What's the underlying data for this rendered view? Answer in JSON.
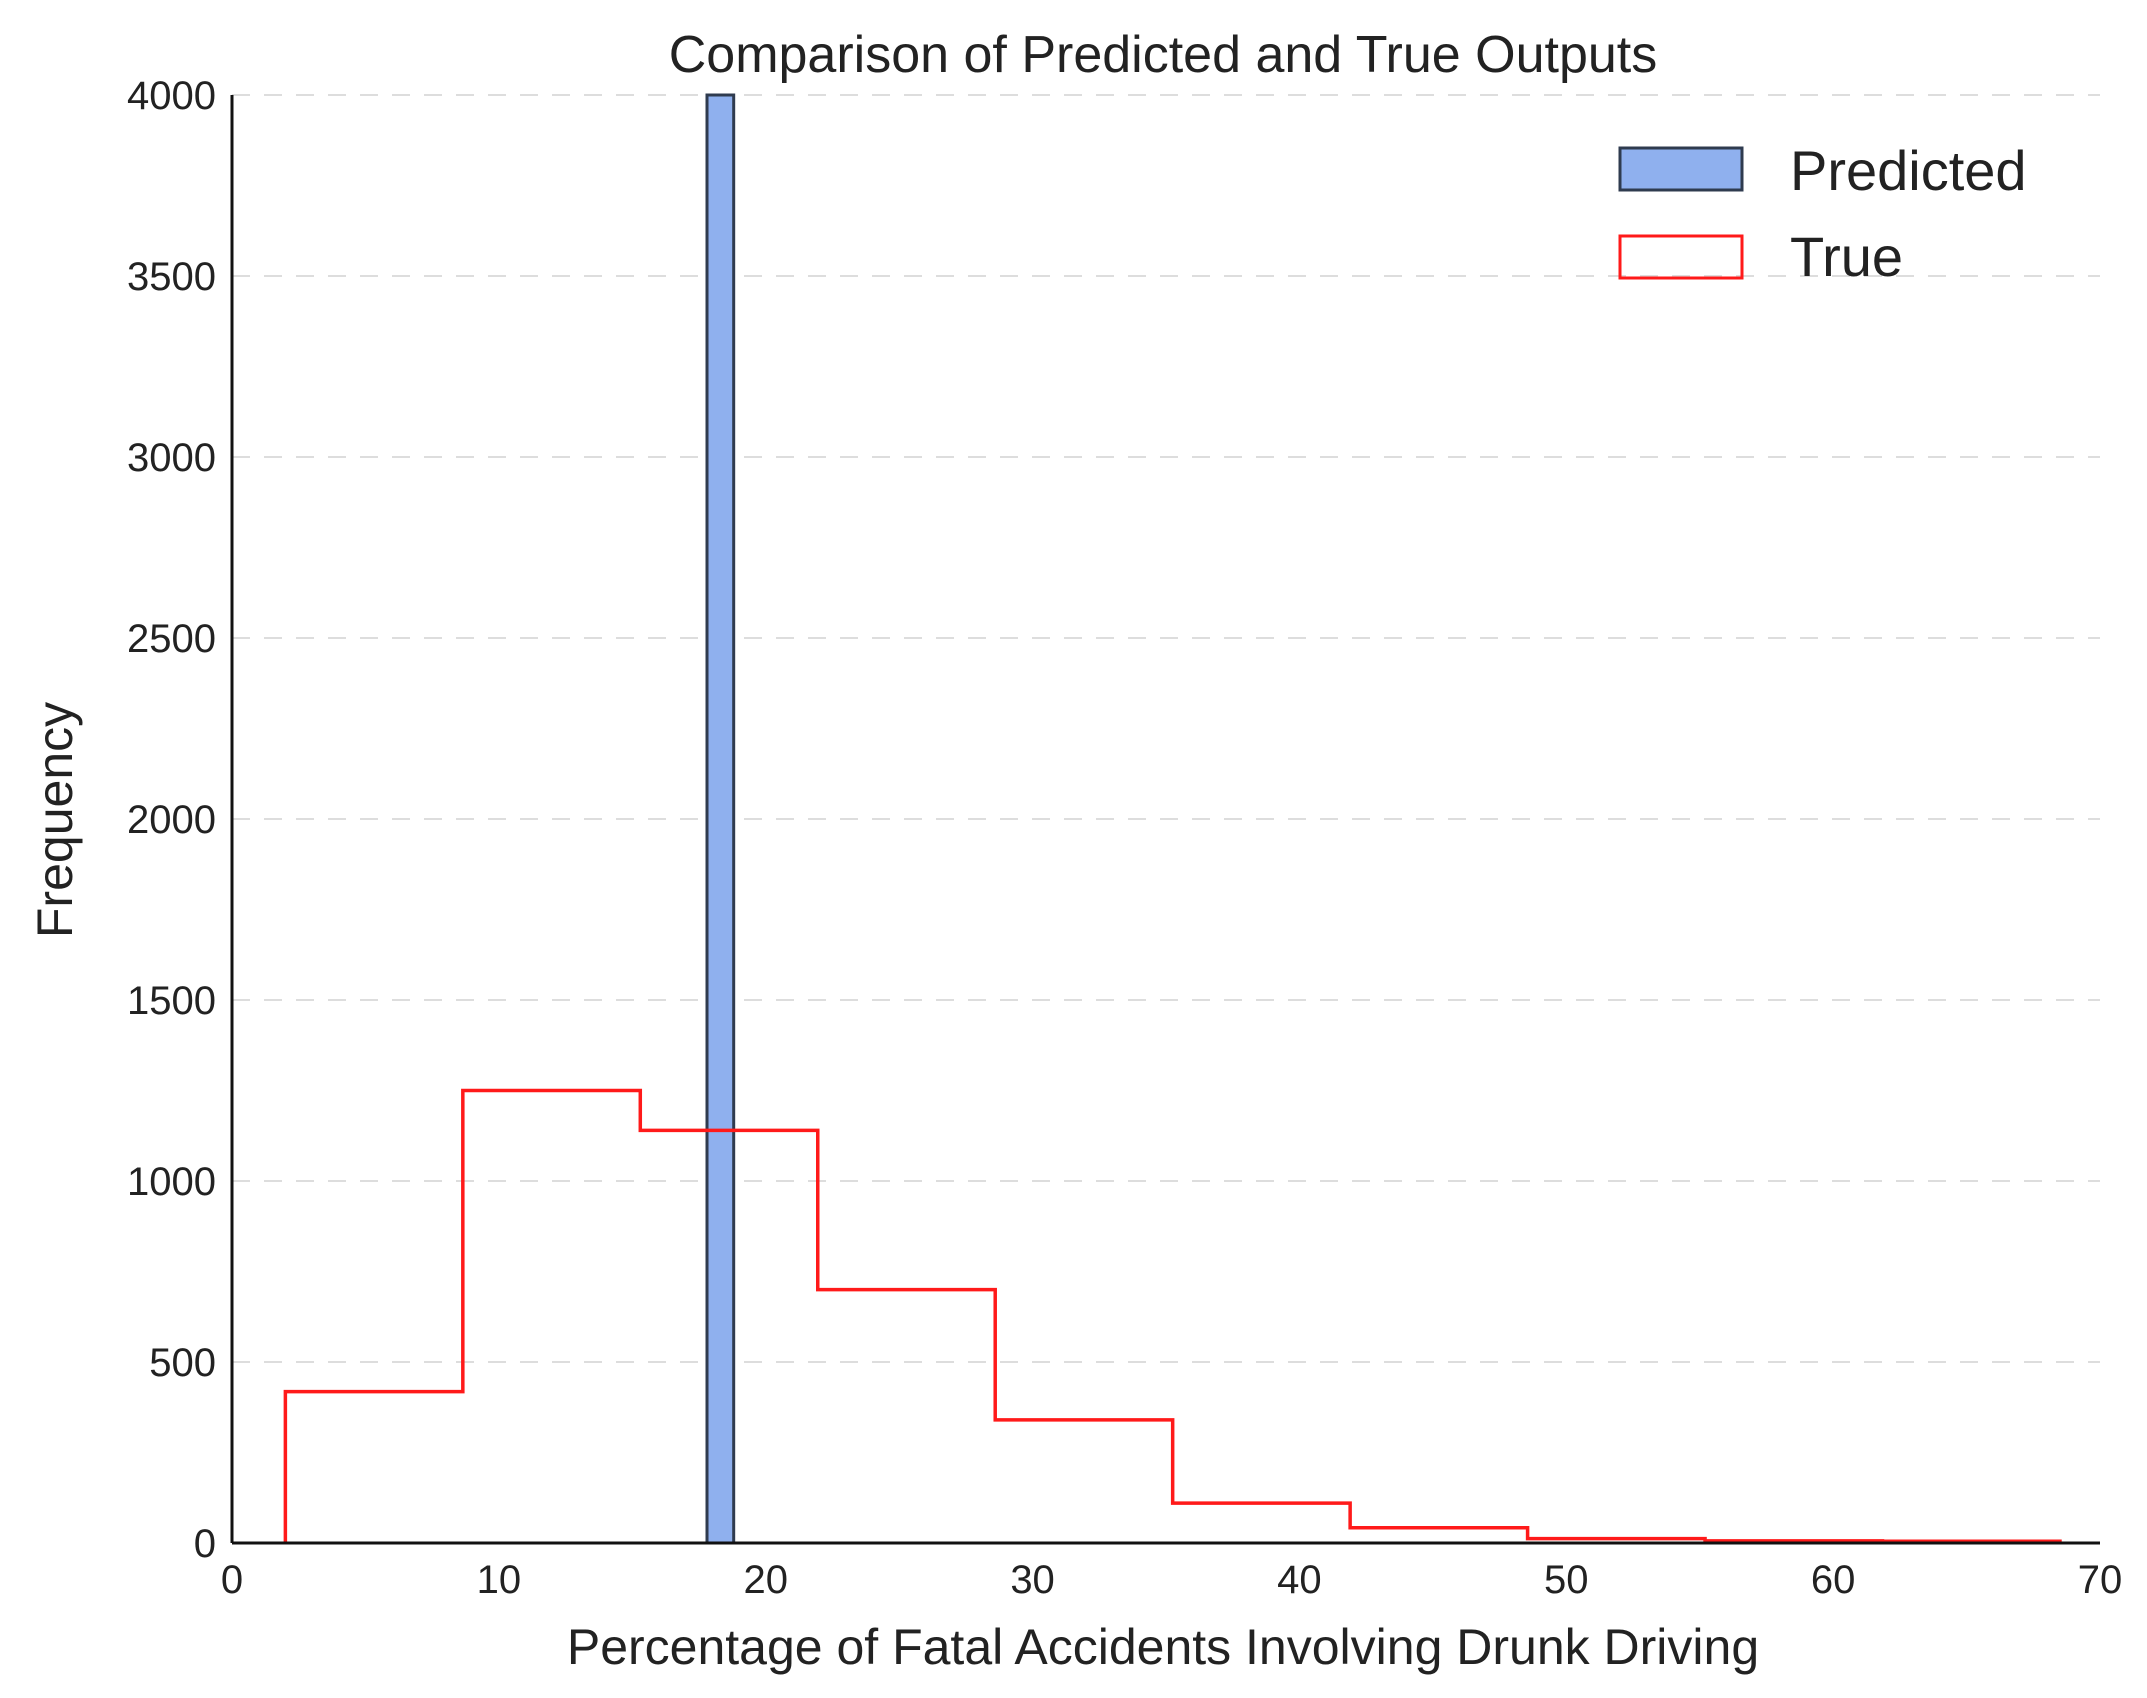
{
  "chart_data": {
    "type": "bar",
    "title": "Comparison of Predicted and True Outputs",
    "xlabel": "Percentage of Fatal Accidents Involving Drunk Driving",
    "ylabel": "Frequency",
    "xlim": [
      0,
      70
    ],
    "ylim": [
      0,
      4000
    ],
    "xticks": [
      "0",
      "10",
      "20",
      "30",
      "40",
      "50",
      "60",
      "70"
    ],
    "yticks": [
      "0",
      "500",
      "1000",
      "1500",
      "2000",
      "2500",
      "3000",
      "3500",
      "4000"
    ],
    "grid": "horizontal dashed",
    "legend_position": "top-right",
    "series": [
      {
        "name": "Predicted",
        "style": "filled-bar",
        "color": "#8fb0ee",
        "edge_color": "#2f3b4f",
        "bins": [
          {
            "x0": 17.8,
            "x1": 18.8,
            "count": 4000
          }
        ]
      },
      {
        "name": "True",
        "style": "step",
        "color": "#ff1a1a",
        "bin_edges": [
          2.0,
          8.65,
          15.3,
          21.95,
          28.6,
          35.25,
          41.9,
          48.55,
          55.2,
          61.85,
          68.5
        ],
        "counts": [
          418,
          1250,
          1140,
          700,
          340,
          110,
          42,
          12,
          6,
          5
        ]
      }
    ]
  }
}
